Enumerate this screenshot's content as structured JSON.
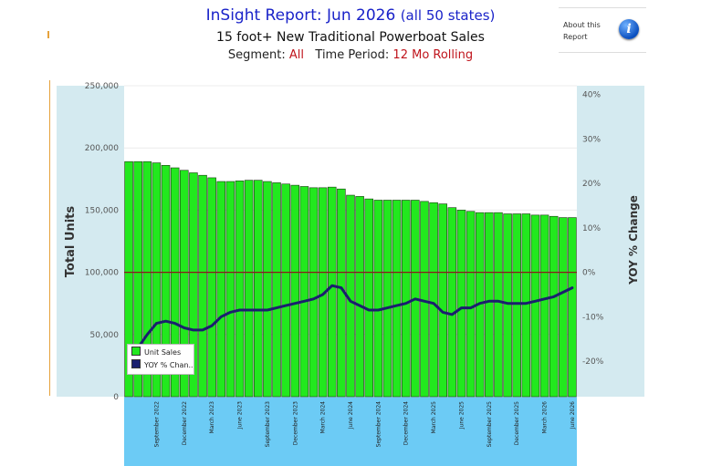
{
  "header": {
    "title_main": "InSight Report: Jun 2026",
    "title_paren": "(all 50 states)",
    "subtitle": "15 foot+ New Traditional Powerboat Sales",
    "segment_label": "Segment:",
    "segment_value": "All",
    "period_label": "Time Period:",
    "period_value": "12 Mo Rolling"
  },
  "about": {
    "label": "About this Report",
    "icon": "info-icon"
  },
  "colors": {
    "panel": "#d4eaf0",
    "plot": "#ffffff",
    "bar": "#22e81e",
    "line": "#1a1f6e",
    "zero_line": "#8b1a1a",
    "axis_strip": "#6ccbf5"
  },
  "chart_data": {
    "type": "bar",
    "ylabel": "Total Units",
    "y2label": "YOY % Change",
    "ylim": [
      0,
      250000
    ],
    "y2lim": [
      -28,
      42
    ],
    "y_ticks": [
      "250,000",
      "200,000",
      "150,000",
      "100,000",
      "50,000",
      "0"
    ],
    "y2_ticks": [
      "40%",
      "30%",
      "20%",
      "10%",
      "0%",
      "-10%",
      "-20%"
    ],
    "x_tick_labels": [
      "September 2022",
      "December 2022",
      "March 2023",
      "June 2023",
      "September 2023",
      "December 2023",
      "March 2024",
      "June 2024",
      "September 2024",
      "December 2024",
      "March 2025",
      "June 2025",
      "September 2025",
      "December 2025",
      "March 2026",
      "June 2026"
    ],
    "x_tick_index": [
      3,
      6,
      9,
      12,
      15,
      18,
      21,
      24,
      27,
      30,
      33,
      36,
      39,
      42,
      45,
      48
    ],
    "categories": [
      "2022-06",
      "2022-07",
      "2022-08",
      "2022-09",
      "2022-10",
      "2022-11",
      "2022-12",
      "2023-01",
      "2023-02",
      "2023-03",
      "2023-04",
      "2023-05",
      "2023-06",
      "2023-07",
      "2023-08",
      "2023-09",
      "2023-10",
      "2023-11",
      "2023-12",
      "2024-01",
      "2024-02",
      "2024-03",
      "2024-04",
      "2024-05",
      "2024-06",
      "2024-07",
      "2024-08",
      "2024-09",
      "2024-10",
      "2024-11",
      "2024-12",
      "2025-01",
      "2025-02",
      "2025-03",
      "2025-04",
      "2025-05",
      "2025-06",
      "2025-07",
      "2025-08",
      "2025-09",
      "2025-10",
      "2025-11",
      "2025-12",
      "2026-01",
      "2026-02",
      "2026-03",
      "2026-04",
      "2026-05",
      "2026-06"
    ],
    "legend_position": "bottom-left",
    "series": [
      {
        "name": "Unit Sales",
        "type": "bar",
        "values": [
          189000,
          189000,
          189000,
          188000,
          186000,
          184000,
          182000,
          180000,
          178000,
          176000,
          173000,
          173000,
          173500,
          174000,
          174000,
          173000,
          172000,
          171000,
          170000,
          169000,
          168000,
          168000,
          168500,
          167000,
          162000,
          161000,
          159000,
          158000,
          158000,
          158000,
          158000,
          158000,
          157000,
          156000,
          155000,
          152000,
          150000,
          149000,
          148000,
          148000,
          148000,
          147000,
          147000,
          147000,
          146000,
          146000,
          145000,
          144000,
          144000
        ]
      },
      {
        "name": "YOY % Chan..",
        "type": "line",
        "axis": "right",
        "values": [
          -21,
          -17,
          -14,
          -11.5,
          -11,
          -11.5,
          -12.5,
          -13,
          -13,
          -12,
          -10,
          -9,
          -8.5,
          -8.5,
          -8.5,
          -8.5,
          -8,
          -7.5,
          -7,
          -6.5,
          -6,
          -5,
          -3,
          -3.5,
          -6.5,
          -7.5,
          -8.5,
          -8.5,
          -8,
          -7.5,
          -7,
          -6,
          -6.5,
          -7,
          -9,
          -9.5,
          -8,
          -8,
          -7,
          -6.5,
          -6.5,
          -7,
          -7,
          -7,
          -6.5,
          -6,
          -5.5,
          -4.5,
          -3.5
        ]
      }
    ]
  }
}
